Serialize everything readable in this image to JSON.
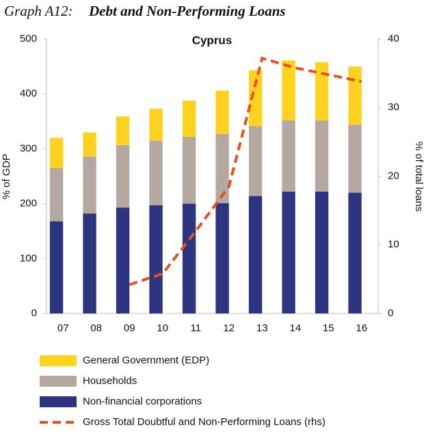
{
  "chart_data": {
    "type": "bar",
    "stacked": true,
    "graph_label": "Graph A12:",
    "title": "Debt and Non-Performing Loans",
    "subtitle": "Cyprus",
    "y_label": "% of GDP",
    "y2_label": "% of total loans",
    "categories": [
      "07",
      "08",
      "09",
      "10",
      "11",
      "12",
      "13",
      "14",
      "15",
      "16"
    ],
    "series": [
      {
        "name": "Non-financial corporations",
        "color": "#2e3580",
        "values": [
          168,
          182,
          193,
          197,
          200,
          201,
          214,
          222,
          222,
          220
        ]
      },
      {
        "name": "Households",
        "color": "#b5a8a0",
        "values": [
          97,
          104,
          114,
          118,
          122,
          126,
          127,
          130,
          130,
          124
        ]
      },
      {
        "name": "General Government (EDP)",
        "color": "#ffd21f",
        "values": [
          55,
          44,
          52,
          58,
          66,
          79,
          102,
          109,
          106,
          106
        ]
      },
      {
        "name": "Gross Total Doubtful and Non-Performing Loans (rhs)",
        "color": "#e8501e",
        "type": "line",
        "dashed": true,
        "axis": "y2",
        "values": [
          null,
          null,
          4.2,
          5.8,
          12,
          18.5,
          37.2,
          35.8,
          34.8,
          33.8
        ]
      }
    ],
    "ylim": [
      0,
      500
    ],
    "yticks": [
      0,
      100,
      200,
      300,
      400,
      500
    ],
    "y2lim": [
      0,
      40
    ],
    "y2ticks": [
      0,
      10,
      20,
      30,
      40
    ],
    "legend_order": [
      2,
      1,
      0,
      3
    ]
  }
}
